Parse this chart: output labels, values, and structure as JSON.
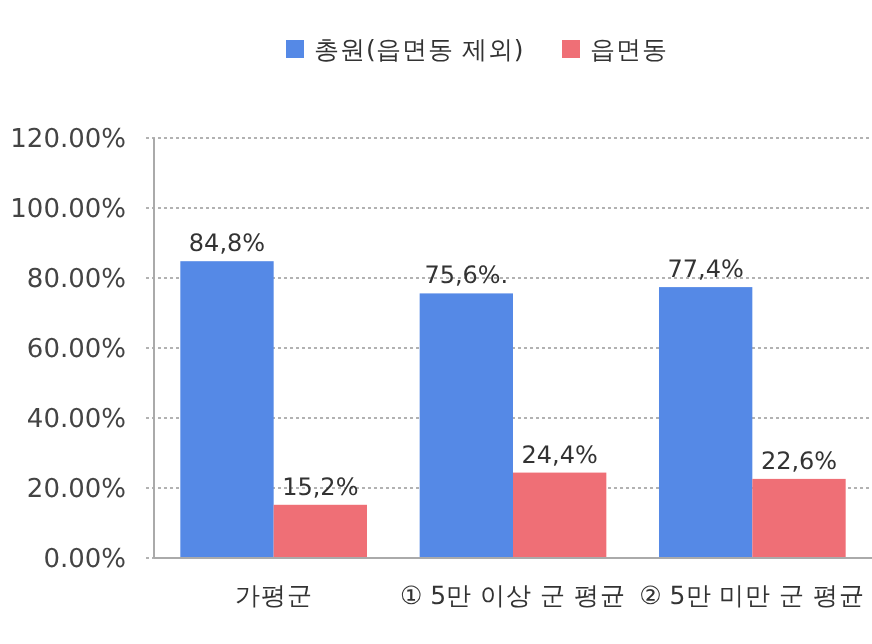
{
  "chart_data": {
    "type": "bar",
    "categories": [
      "가평군",
      "① 5만 이상 군 평균",
      "② 5만 미만 군 평균"
    ],
    "series": [
      {
        "name": "총원(읍면동 제외)",
        "color": "#5589e6",
        "values": [
          84.8,
          75.6,
          77.4
        ],
        "value_labels": [
          "84,8%",
          "75,6%.",
          "77,4%"
        ]
      },
      {
        "name": "읍면동",
        "color": "#ef6f76",
        "values": [
          15.2,
          24.4,
          22.6
        ],
        "value_labels": [
          "15,2%",
          "24,4%",
          "22,6%"
        ]
      }
    ],
    "ylim": [
      0,
      120
    ],
    "yticks": [
      {
        "value": 0,
        "label": "0.00%"
      },
      {
        "value": 20,
        "label": "20.00%"
      },
      {
        "value": 40,
        "label": "40.00%"
      },
      {
        "value": 60,
        "label": "60.00%"
      },
      {
        "value": 80,
        "label": "80.00%"
      },
      {
        "value": 100,
        "label": "100.00%"
      },
      {
        "value": 120,
        "label": "120.00%"
      }
    ],
    "grid": "y",
    "legend": "top"
  }
}
